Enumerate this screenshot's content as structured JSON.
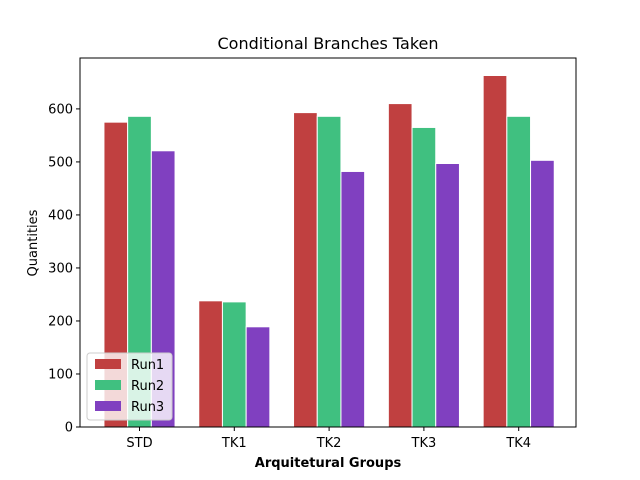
{
  "chart_data": {
    "type": "bar",
    "title": "Conditional Branches Taken",
    "xlabel": "Arquitetural Groups",
    "ylabel": "Quantities",
    "categories": [
      "STD",
      "TK1",
      "TK2",
      "TK3",
      "TK4"
    ],
    "series": [
      {
        "name": "Run1",
        "color": "#c04040",
        "values": [
          575,
          238,
          593,
          610,
          663
        ]
      },
      {
        "name": "Run2",
        "color": "#40c080",
        "values": [
          586,
          236,
          586,
          565,
          586
        ]
      },
      {
        "name": "Run3",
        "color": "#8040c0",
        "values": [
          521,
          189,
          482,
          497,
          503
        ]
      }
    ],
    "ylim": [
      0,
      696
    ],
    "yticks": [
      0,
      100,
      200,
      300,
      400,
      500,
      600
    ],
    "grid": false,
    "legend_position": "lower-left"
  }
}
